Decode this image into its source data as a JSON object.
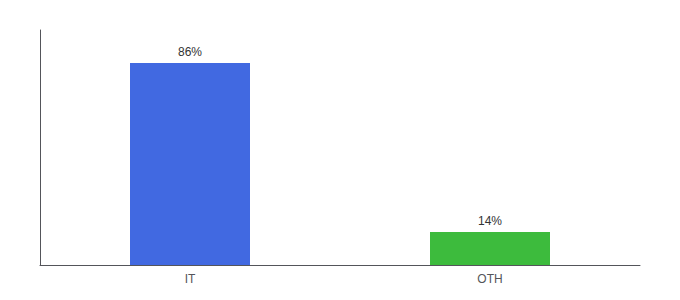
{
  "chart_data": {
    "type": "bar",
    "categories": [
      "IT",
      "OTH"
    ],
    "values": [
      86,
      14
    ],
    "colors": [
      "#4169e1",
      "#3dbb3d"
    ],
    "value_labels": [
      "86%",
      "14%"
    ],
    "data_labels": true,
    "ylim": [
      0,
      100
    ],
    "tick_labels": "x",
    "grid": false
  }
}
